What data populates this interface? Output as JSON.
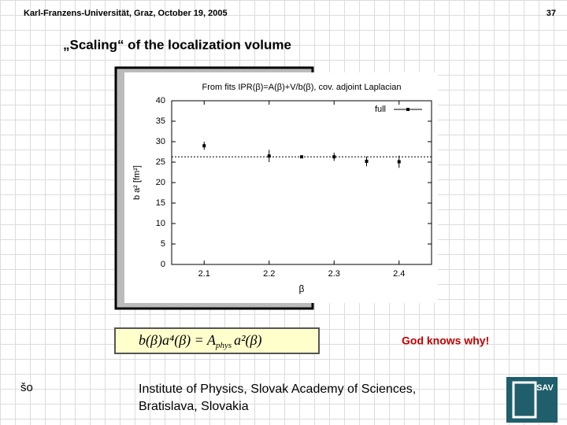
{
  "header": {
    "left": "Karl-Franzens-Universität, Graz, October 19, 2005",
    "page": "37"
  },
  "title": "„Scaling“ of the localization volume",
  "chart_data": {
    "type": "scatter",
    "title": "From fits IPR(β)=A(β)+V/b(β), cov. adjoint Laplacian",
    "x_label": "β",
    "y_label": "b a² [fm²]",
    "x": [
      2.1,
      2.2,
      2.25,
      2.3,
      2.35,
      2.4
    ],
    "series": [
      {
        "name": "full",
        "color": "#000000",
        "values": [
          29,
          26.5,
          26.3,
          26.3,
          25.2,
          25.1
        ],
        "errors": [
          1,
          1.5,
          0.3,
          1,
          1.2,
          1.5
        ]
      }
    ],
    "reference_line": 26.3,
    "xlim": [
      2.05,
      2.45
    ],
    "ylim": [
      0,
      40
    ],
    "xticks": [
      2.1,
      2.2,
      2.3,
      2.4
    ],
    "yticks": [
      0,
      5,
      10,
      15,
      20,
      25,
      30,
      35,
      40
    ],
    "legend": "top-right"
  },
  "formula": {
    "left": "b(β)a⁴(β) = A",
    "sub": "phys",
    "right": "a²(β)"
  },
  "note": "God knows why!",
  "footer": {
    "initials": "šo",
    "line1": "Institute of Physics, Slovak Academy of Sciences,",
    "line2": "Bratislava, Slovakia",
    "logo": "SAV"
  }
}
